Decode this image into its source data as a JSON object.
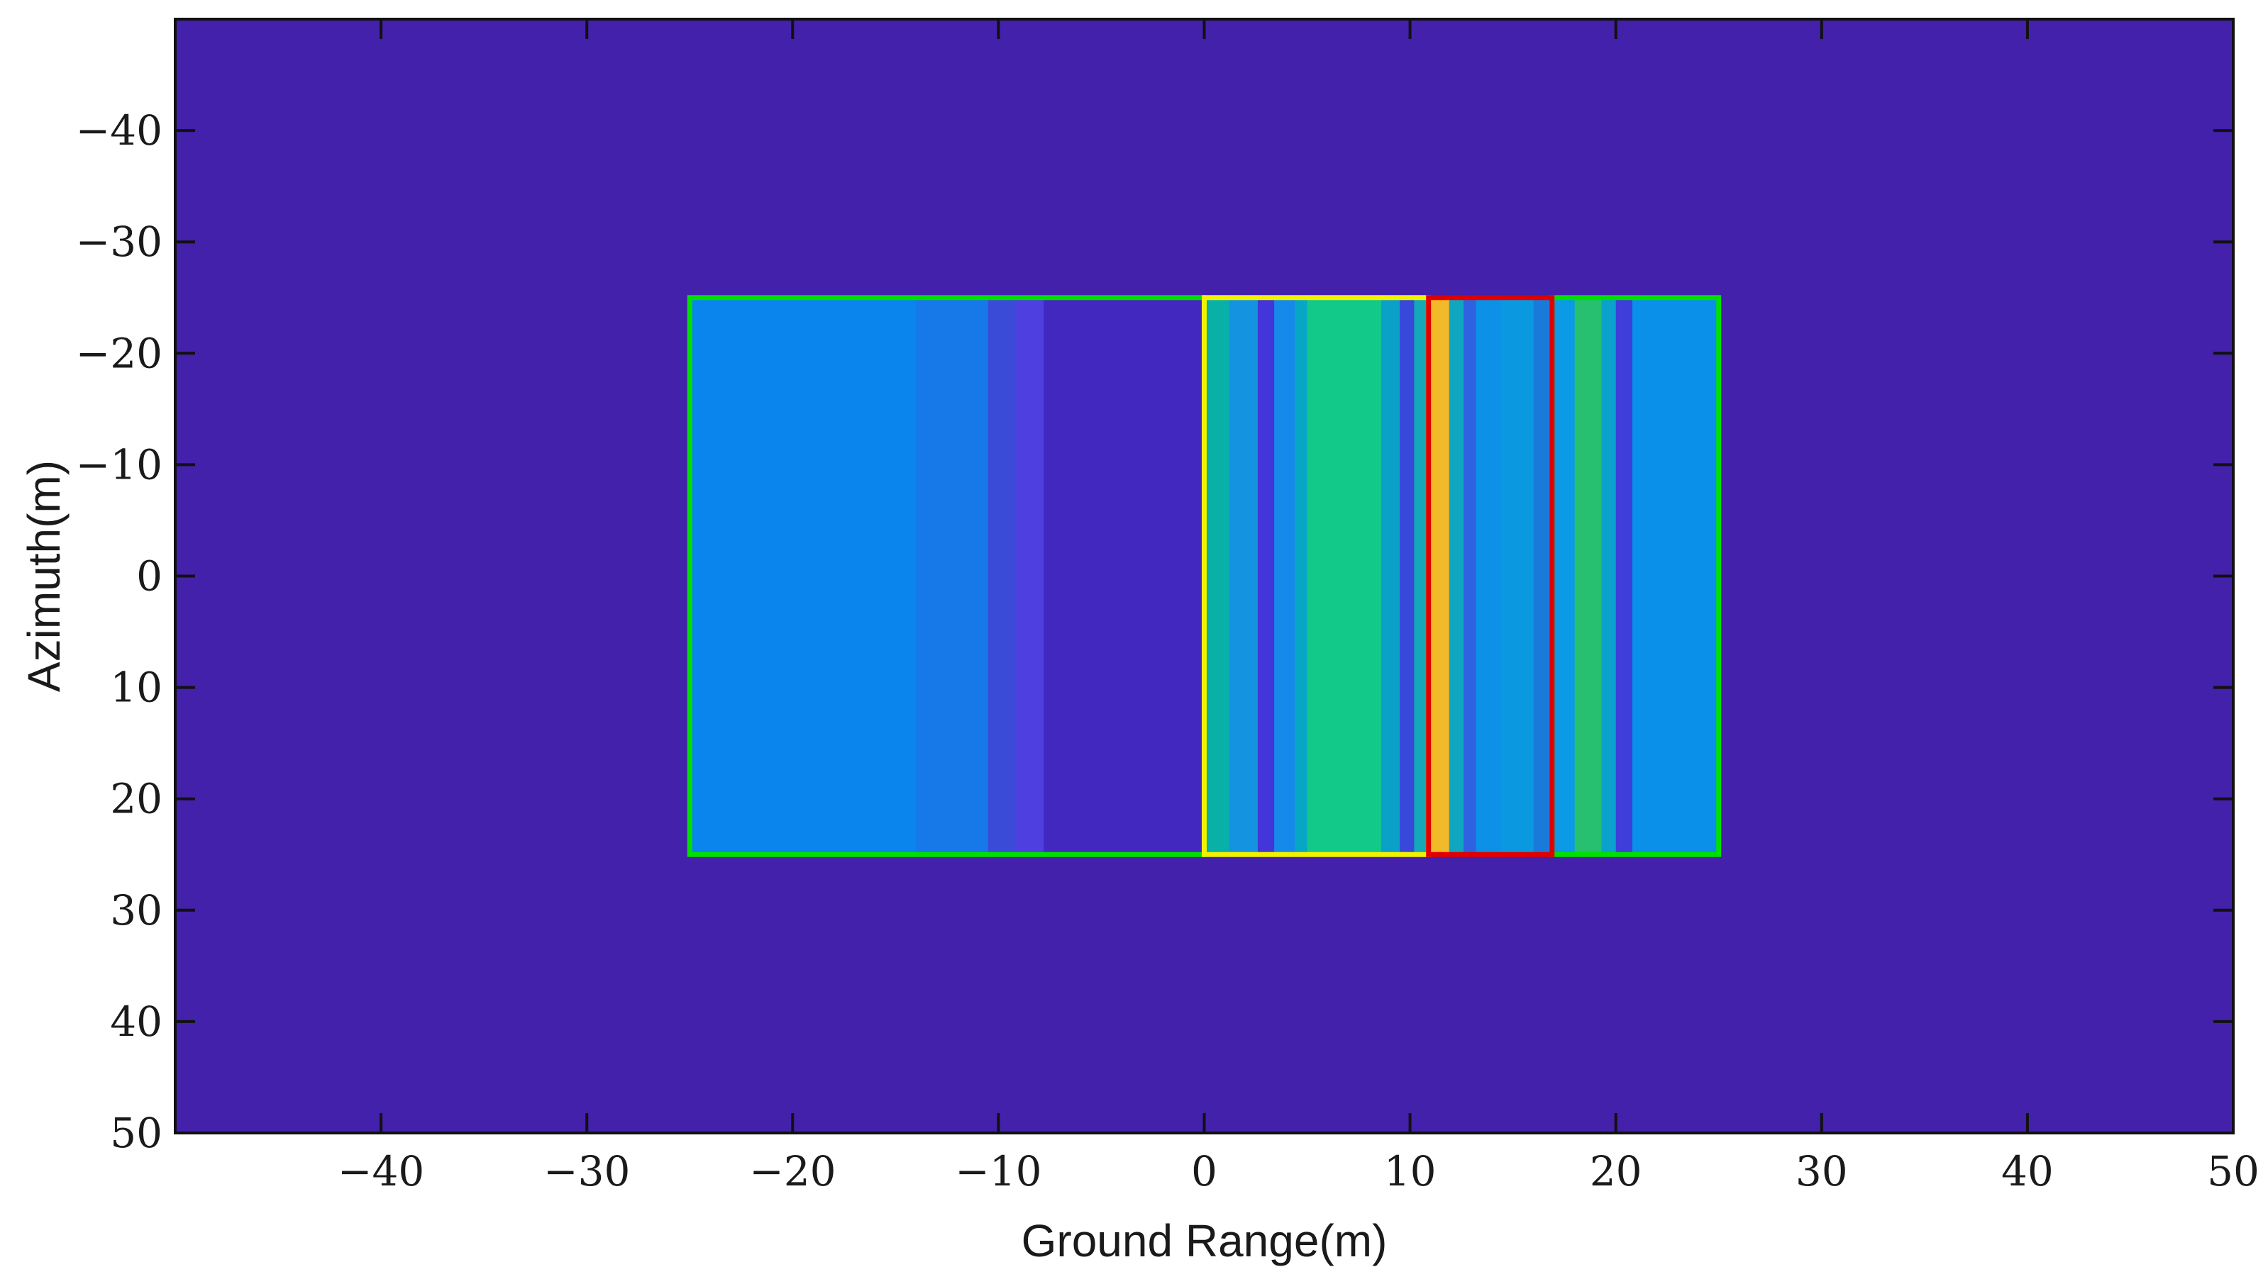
{
  "chart_data": {
    "type": "heatmap",
    "title": "",
    "xlabel": "Ground Range(m)",
    "ylabel": "Azimuth(m)",
    "xlim": [
      -50,
      50
    ],
    "ylim": [
      -50,
      50
    ],
    "y_inverted": true,
    "grid": false,
    "xticks": [
      -40,
      -30,
      -20,
      -10,
      0,
      10,
      20,
      30,
      40,
      50
    ],
    "yticks": [
      -40,
      -30,
      -20,
      -10,
      0,
      10,
      20,
      30,
      40,
      50
    ],
    "xtick_labels": [
      "−40",
      "−30",
      "−20",
      "−10",
      "0",
      "10",
      "20",
      "30",
      "40",
      "50"
    ],
    "ytick_labels": [
      "−40",
      "−30",
      "−20",
      "−10",
      "0",
      "10",
      "20",
      "30",
      "40",
      "50"
    ],
    "background_color": "#4321AA",
    "scene_region": {
      "x": [
        -25,
        25
      ],
      "y": [
        -25,
        25
      ]
    },
    "range_profile": [
      {
        "x": [
          -25,
          -14
        ],
        "color": "#0A85EE"
      },
      {
        "x": [
          -14,
          -10.5
        ],
        "color": "#1779E8"
      },
      {
        "x": [
          -10.5,
          -9.2
        ],
        "color": "#3A4BD8"
      },
      {
        "x": [
          -9.2,
          -7.8
        ],
        "color": "#4E3FE0"
      },
      {
        "x": [
          -7.8,
          0
        ],
        "color": "#4328C0"
      },
      {
        "x": [
          0,
          1.2
        ],
        "color": "#08B0A8"
      },
      {
        "x": [
          1.2,
          2.6
        ],
        "color": "#1494E0"
      },
      {
        "x": [
          2.6,
          3.4
        ],
        "color": "#4435D8"
      },
      {
        "x": [
          3.4,
          4.4
        ],
        "color": "#168AEA"
      },
      {
        "x": [
          4.4,
          5.0
        ],
        "color": "#08A6C6"
      },
      {
        "x": [
          5.0,
          8.6
        ],
        "color": "#12C98A"
      },
      {
        "x": [
          8.6,
          9.5
        ],
        "color": "#0AA0C8"
      },
      {
        "x": [
          9.5,
          10.2
        ],
        "color": "#3848D8"
      },
      {
        "x": [
          10.2,
          10.9
        ],
        "color": "#14A8B8"
      },
      {
        "x": [
          10.9,
          11.9
        ],
        "color": "#F2B928"
      },
      {
        "x": [
          11.9,
          12.6
        ],
        "color": "#10A6C0"
      },
      {
        "x": [
          12.6,
          13.2
        ],
        "color": "#2E62E0"
      },
      {
        "x": [
          13.2,
          14.4
        ],
        "color": "#0C90E8"
      },
      {
        "x": [
          14.4,
          16.0
        ],
        "color": "#0A98E0"
      },
      {
        "x": [
          16.0,
          16.9
        ],
        "color": "#1A7ADA"
      },
      {
        "x": [
          16.9,
          18.0
        ],
        "color": "#0A9AE6"
      },
      {
        "x": [
          18.0,
          19.3
        ],
        "color": "#26C070"
      },
      {
        "x": [
          19.3,
          20.0
        ],
        "color": "#0AA2CC"
      },
      {
        "x": [
          20.0,
          20.8
        ],
        "color": "#3E3EDA"
      },
      {
        "x": [
          20.8,
          25
        ],
        "color": "#0A90E8"
      }
    ],
    "outlines": [
      {
        "x": [
          -25,
          0
        ],
        "y": [
          -25,
          25
        ],
        "color": "#00E000"
      },
      {
        "x": [
          16.9,
          25
        ],
        "y": [
          -25,
          25
        ],
        "color": "#00E000"
      },
      {
        "x": [
          0,
          10.9
        ],
        "y": [
          -25,
          25
        ],
        "color": "#F2F200"
      },
      {
        "x": [
          10.9,
          16.9
        ],
        "y": [
          -25,
          25
        ],
        "color": "#E00000"
      }
    ]
  }
}
